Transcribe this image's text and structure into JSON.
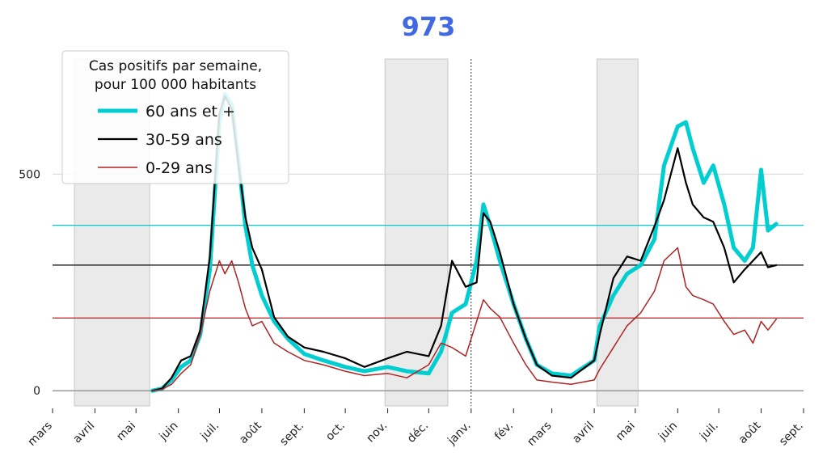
{
  "chart_data": {
    "type": "line",
    "title": "973",
    "title_color": "#4169e1",
    "xlabel": "",
    "ylabel": "",
    "x_range": [
      "2020-03-01",
      "2021-09-01"
    ],
    "ylim": [
      -35,
      790
    ],
    "yticks": [
      0,
      500
    ],
    "ytick_labels": [
      "0",
      "500"
    ],
    "xticks": [
      "2020-03-01",
      "2020-04-01",
      "2020-05-01",
      "2020-06-01",
      "2020-07-01",
      "2020-08-01",
      "2020-09-01",
      "2020-10-01",
      "2020-11-01",
      "2020-12-01",
      "2021-01-01",
      "2021-02-01",
      "2021-03-01",
      "2021-04-01",
      "2021-05-01",
      "2021-06-01",
      "2021-07-01",
      "2021-08-01",
      "2021-09-01"
    ],
    "xtick_labels": [
      "mars",
      "avril",
      "mai",
      "juin",
      "juil.",
      "août",
      "sept.",
      "oct.",
      "nov.",
      "déc.",
      "janv.",
      "fév.",
      "mars",
      "avril",
      "mai",
      "juin",
      "juil.",
      "août",
      "sept."
    ],
    "legend": {
      "title_line1": "Cas positifs par semaine,",
      "title_line2": "pour 100 000 habitants",
      "placement": "top-left"
    },
    "shaded_periods": [
      {
        "start": "2020-03-17",
        "end": "2020-05-11"
      },
      {
        "start": "2020-10-30",
        "end": "2020-12-15"
      },
      {
        "start": "2021-04-03",
        "end": "2021-05-03"
      }
    ],
    "vline": {
      "date": "2021-01-01",
      "style": "dashed",
      "color": "#000000"
    },
    "series": [
      {
        "name": "60 ans et +",
        "color": "#00ced1",
        "width": 5,
        "reference_level": 382,
        "points": [
          [
            "2020-05-13",
            0
          ],
          [
            "2020-05-20",
            5
          ],
          [
            "2020-05-27",
            25
          ],
          [
            "2020-06-03",
            55
          ],
          [
            "2020-06-10",
            70
          ],
          [
            "2020-06-17",
            130
          ],
          [
            "2020-06-24",
            280
          ],
          [
            "2020-07-01",
            620
          ],
          [
            "2020-07-05",
            685
          ],
          [
            "2020-07-10",
            660
          ],
          [
            "2020-07-15",
            530
          ],
          [
            "2020-07-20",
            380
          ],
          [
            "2020-07-25",
            290
          ],
          [
            "2020-08-01",
            220
          ],
          [
            "2020-08-10",
            160
          ],
          [
            "2020-08-20",
            120
          ],
          [
            "2020-09-01",
            85
          ],
          [
            "2020-09-15",
            70
          ],
          [
            "2020-10-01",
            55
          ],
          [
            "2020-10-15",
            45
          ],
          [
            "2020-11-01",
            55
          ],
          [
            "2020-11-15",
            45
          ],
          [
            "2020-12-01",
            40
          ],
          [
            "2020-12-10",
            90
          ],
          [
            "2020-12-18",
            180
          ],
          [
            "2020-12-28",
            200
          ],
          [
            "2021-01-05",
            300
          ],
          [
            "2021-01-10",
            430
          ],
          [
            "2021-01-15",
            380
          ],
          [
            "2021-01-22",
            300
          ],
          [
            "2021-02-01",
            200
          ],
          [
            "2021-02-10",
            120
          ],
          [
            "2021-02-18",
            60
          ],
          [
            "2021-03-01",
            40
          ],
          [
            "2021-03-15",
            35
          ],
          [
            "2021-04-01",
            70
          ],
          [
            "2021-04-05",
            150
          ],
          [
            "2021-04-15",
            220
          ],
          [
            "2021-04-25",
            270
          ],
          [
            "2021-05-05",
            290
          ],
          [
            "2021-05-15",
            350
          ],
          [
            "2021-05-22",
            520
          ],
          [
            "2021-06-01",
            610
          ],
          [
            "2021-06-07",
            620
          ],
          [
            "2021-06-12",
            560
          ],
          [
            "2021-06-20",
            480
          ],
          [
            "2021-06-27",
            520
          ],
          [
            "2021-07-05",
            430
          ],
          [
            "2021-07-12",
            330
          ],
          [
            "2021-07-20",
            300
          ],
          [
            "2021-07-26",
            330
          ],
          [
            "2021-08-01",
            510
          ],
          [
            "2021-08-06",
            370
          ],
          [
            "2021-08-12",
            385
          ]
        ]
      },
      {
        "name": "30-59 ans",
        "color": "#000000",
        "width": 2.2,
        "reference_level": 290,
        "points": [
          [
            "2020-05-13",
            0
          ],
          [
            "2020-05-20",
            5
          ],
          [
            "2020-05-27",
            30
          ],
          [
            "2020-06-03",
            70
          ],
          [
            "2020-06-10",
            80
          ],
          [
            "2020-06-17",
            140
          ],
          [
            "2020-06-24",
            310
          ],
          [
            "2020-07-01",
            640
          ],
          [
            "2020-07-05",
            680
          ],
          [
            "2020-07-10",
            650
          ],
          [
            "2020-07-15",
            520
          ],
          [
            "2020-07-20",
            400
          ],
          [
            "2020-07-25",
            330
          ],
          [
            "2020-08-01",
            280
          ],
          [
            "2020-08-10",
            170
          ],
          [
            "2020-08-20",
            125
          ],
          [
            "2020-09-01",
            100
          ],
          [
            "2020-09-15",
            90
          ],
          [
            "2020-10-01",
            75
          ],
          [
            "2020-10-15",
            55
          ],
          [
            "2020-11-01",
            75
          ],
          [
            "2020-11-15",
            90
          ],
          [
            "2020-12-01",
            80
          ],
          [
            "2020-12-10",
            150
          ],
          [
            "2020-12-18",
            300
          ],
          [
            "2020-12-28",
            240
          ],
          [
            "2021-01-05",
            250
          ],
          [
            "2021-01-10",
            410
          ],
          [
            "2021-01-15",
            390
          ],
          [
            "2021-01-22",
            320
          ],
          [
            "2021-02-01",
            200
          ],
          [
            "2021-02-10",
            120
          ],
          [
            "2021-02-18",
            60
          ],
          [
            "2021-03-01",
            35
          ],
          [
            "2021-03-15",
            30
          ],
          [
            "2021-04-01",
            70
          ],
          [
            "2021-04-05",
            130
          ],
          [
            "2021-04-15",
            260
          ],
          [
            "2021-04-25",
            310
          ],
          [
            "2021-05-05",
            300
          ],
          [
            "2021-05-15",
            380
          ],
          [
            "2021-05-22",
            440
          ],
          [
            "2021-06-01",
            560
          ],
          [
            "2021-06-07",
            480
          ],
          [
            "2021-06-12",
            430
          ],
          [
            "2021-06-20",
            400
          ],
          [
            "2021-06-27",
            390
          ],
          [
            "2021-07-05",
            330
          ],
          [
            "2021-07-12",
            250
          ],
          [
            "2021-07-20",
            280
          ],
          [
            "2021-07-26",
            300
          ],
          [
            "2021-08-01",
            320
          ],
          [
            "2021-08-06",
            285
          ],
          [
            "2021-08-12",
            290
          ]
        ]
      },
      {
        "name": "0-29 ans",
        "color": "#b22222",
        "width": 1.5,
        "reference_level": 168,
        "points": [
          [
            "2020-05-13",
            0
          ],
          [
            "2020-05-20",
            3
          ],
          [
            "2020-05-27",
            15
          ],
          [
            "2020-06-03",
            40
          ],
          [
            "2020-06-10",
            60
          ],
          [
            "2020-06-17",
            130
          ],
          [
            "2020-06-24",
            230
          ],
          [
            "2020-07-01",
            300
          ],
          [
            "2020-07-05",
            270
          ],
          [
            "2020-07-10",
            300
          ],
          [
            "2020-07-15",
            250
          ],
          [
            "2020-07-20",
            190
          ],
          [
            "2020-07-25",
            150
          ],
          [
            "2020-08-01",
            160
          ],
          [
            "2020-08-10",
            110
          ],
          [
            "2020-08-20",
            90
          ],
          [
            "2020-09-01",
            70
          ],
          [
            "2020-09-15",
            60
          ],
          [
            "2020-10-01",
            45
          ],
          [
            "2020-10-15",
            35
          ],
          [
            "2020-11-01",
            40
          ],
          [
            "2020-11-15",
            30
          ],
          [
            "2020-12-01",
            60
          ],
          [
            "2020-12-10",
            110
          ],
          [
            "2020-12-18",
            100
          ],
          [
            "2020-12-28",
            80
          ],
          [
            "2021-01-05",
            160
          ],
          [
            "2021-01-10",
            210
          ],
          [
            "2021-01-15",
            190
          ],
          [
            "2021-01-22",
            170
          ],
          [
            "2021-02-01",
            110
          ],
          [
            "2021-02-10",
            60
          ],
          [
            "2021-02-18",
            25
          ],
          [
            "2021-03-01",
            20
          ],
          [
            "2021-03-15",
            15
          ],
          [
            "2021-04-01",
            25
          ],
          [
            "2021-04-05",
            50
          ],
          [
            "2021-04-15",
            100
          ],
          [
            "2021-04-25",
            150
          ],
          [
            "2021-05-05",
            180
          ],
          [
            "2021-05-15",
            230
          ],
          [
            "2021-05-22",
            300
          ],
          [
            "2021-06-01",
            330
          ],
          [
            "2021-06-07",
            240
          ],
          [
            "2021-06-12",
            220
          ],
          [
            "2021-06-20",
            210
          ],
          [
            "2021-06-27",
            200
          ],
          [
            "2021-07-05",
            160
          ],
          [
            "2021-07-12",
            130
          ],
          [
            "2021-07-20",
            140
          ],
          [
            "2021-07-26",
            110
          ],
          [
            "2021-08-01",
            160
          ],
          [
            "2021-08-06",
            140
          ],
          [
            "2021-08-12",
            165
          ]
        ]
      }
    ]
  }
}
